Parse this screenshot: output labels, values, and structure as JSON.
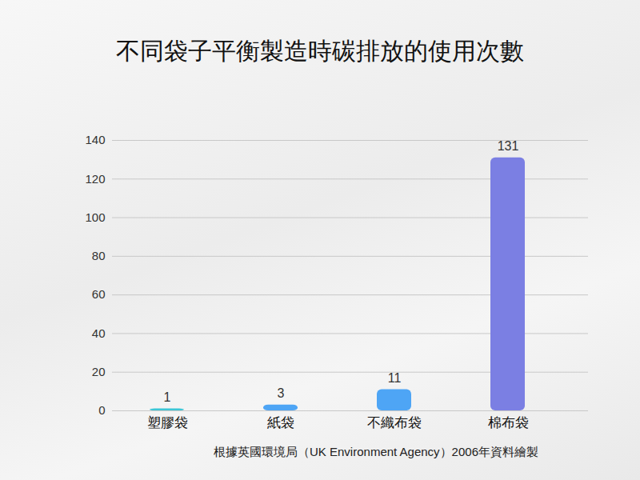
{
  "chart_data": {
    "type": "bar",
    "title": "不同袋子平衡製造時碳排放的使用次數",
    "caption": "根據英國環境局（UK Environment Agency）2006年資料繪製",
    "categories": [
      "塑膠袋",
      "紙袋",
      "不織布袋",
      "棉布袋"
    ],
    "values": [
      1,
      3,
      11,
      131
    ],
    "colors": [
      "#3cc6d6",
      "#4ea5f5",
      "#4ea5f5",
      "#7b7fe3"
    ],
    "ylim": [
      0,
      140
    ],
    "yticks": [
      0,
      20,
      40,
      60,
      80,
      100,
      120,
      140
    ],
    "grid": true,
    "data_labels": true
  }
}
